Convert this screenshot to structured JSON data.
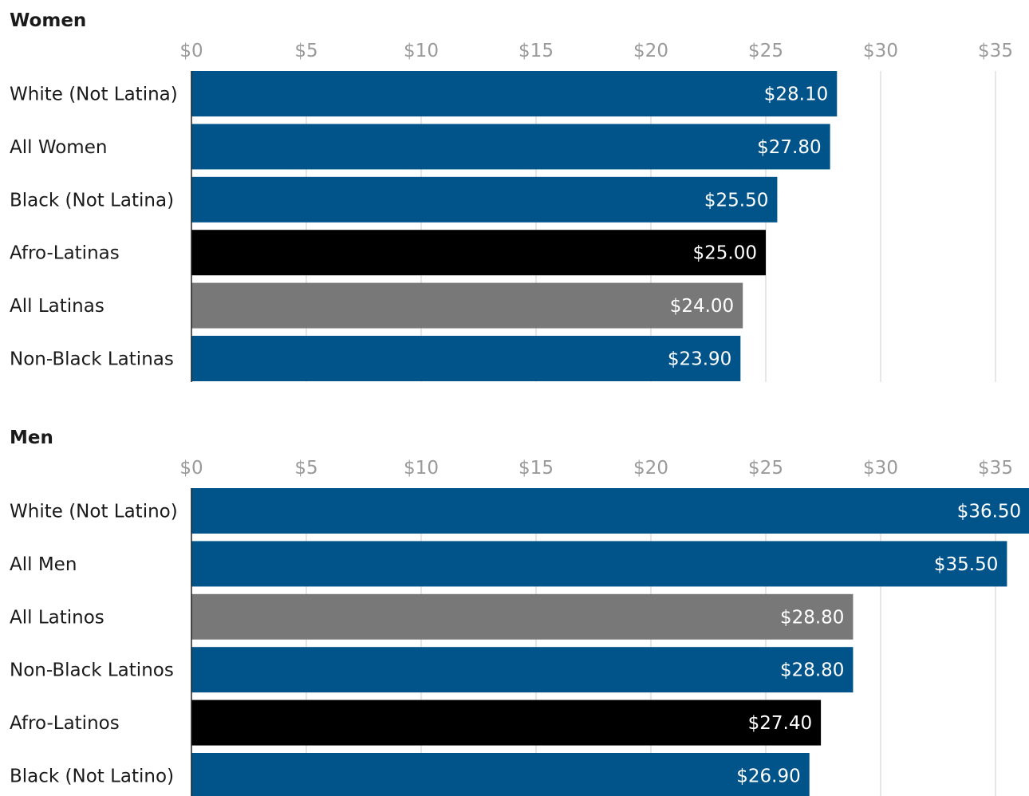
{
  "colors": {
    "default": "#00548a",
    "all_latino": "#787878",
    "afro_latino": "#000000",
    "gridline": "#dddddd",
    "tick_text": "#9a9a9a"
  },
  "chart_data": [
    {
      "type": "bar",
      "orientation": "horizontal",
      "title": "Women",
      "xlim": [
        0,
        35
      ],
      "ticks": [
        0,
        5,
        10,
        15,
        20,
        25,
        30,
        35
      ],
      "tick_labels": [
        "$0",
        "$5",
        "$10",
        "$15",
        "$20",
        "$25",
        "$30",
        "$35"
      ],
      "categories": [
        "White (Not Latina)",
        "All Women",
        "Black (Not Latina)",
        "Afro-Latinas",
        "All Latinas",
        "Non-Black Latinas"
      ],
      "values": [
        28.1,
        27.8,
        25.5,
        25.0,
        24.0,
        23.9
      ],
      "value_labels": [
        "$28.10",
        "$27.80",
        "$25.50",
        "$25.00",
        "$24.00",
        "$23.90"
      ],
      "bar_colors": [
        "#00548a",
        "#00548a",
        "#00548a",
        "#000000",
        "#787878",
        "#00548a"
      ],
      "grid": true,
      "legend": "none"
    },
    {
      "type": "bar",
      "orientation": "horizontal",
      "title": "Men",
      "xlim": [
        0,
        35
      ],
      "ticks": [
        0,
        5,
        10,
        15,
        20,
        25,
        30,
        35
      ],
      "tick_labels": [
        "$0",
        "$5",
        "$10",
        "$15",
        "$20",
        "$25",
        "$30",
        "$35"
      ],
      "categories": [
        "White (Not Latino)",
        "All Men",
        "All Latinos",
        "Non-Black Latinos",
        "Afro-Latinos",
        "Black (Not Latino)"
      ],
      "values": [
        36.5,
        35.5,
        28.8,
        28.8,
        27.4,
        26.9
      ],
      "value_labels": [
        "$36.50",
        "$35.50",
        "$28.80",
        "$28.80",
        "$27.40",
        "$26.90"
      ],
      "bar_colors": [
        "#00548a",
        "#00548a",
        "#787878",
        "#00548a",
        "#000000",
        "#00548a"
      ],
      "grid": true,
      "legend": "none"
    }
  ]
}
